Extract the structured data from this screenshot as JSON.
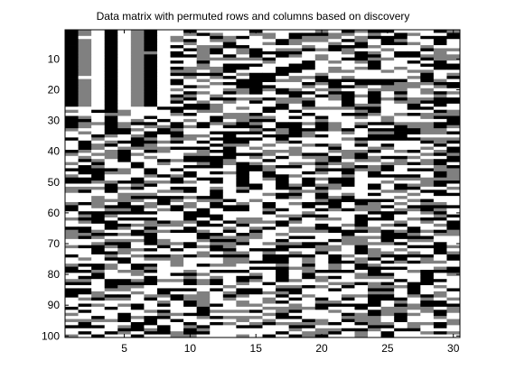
{
  "chart_data": {
    "type": "heatmap",
    "title": "Data matrix with permuted rows and columns based on discovery",
    "xlabel": "",
    "ylabel": "",
    "rows": 100,
    "cols": 30,
    "levels": [
      0,
      1,
      2
    ],
    "colormap": [
      "#000000",
      "#808080",
      "#ffffff"
    ],
    "xlim": [
      0.5,
      30.5
    ],
    "ylim": [
      0.5,
      100.5
    ],
    "y_reversed": true,
    "xticks": [
      5,
      10,
      15,
      20,
      25,
      30
    ],
    "yticks": [
      10,
      20,
      30,
      40,
      50,
      60,
      70,
      80,
      90,
      100
    ],
    "grid": false,
    "first_columns_note": "Columns 1-8 are near-constant for rows 1-25 (alternating black/gray/white bands)",
    "top_left_columns": {
      "rows_1_to_25": [
        0,
        1,
        2,
        0,
        2,
        1,
        0,
        2
      ]
    }
  }
}
